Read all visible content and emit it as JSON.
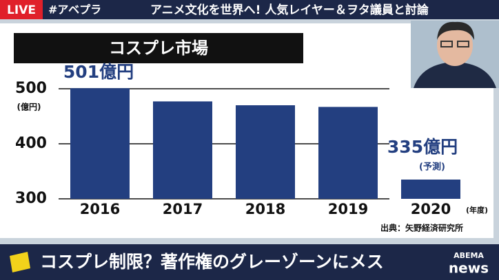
{
  "header": {
    "live": "LIVE",
    "hashtag": "#アベプラ",
    "topic": "アニメ文化を世界へ! 人気レイヤー＆ヲタ議員と討論"
  },
  "caption": {
    "text": "コスプレ制限？著作権のグレーゾーンにメス",
    "logo_top": "ABEMA",
    "logo_bottom": "news"
  },
  "chart_data": {
    "type": "bar",
    "title": "コスプレ市場",
    "categories": [
      "2016",
      "2017",
      "2018",
      "2019",
      "2020"
    ],
    "values": [
      501,
      477,
      470,
      467,
      335
    ],
    "value_labels": [
      "501億円",
      null,
      null,
      null,
      "335億円"
    ],
    "forecast_note": "(予測)",
    "y_unit": "(億円)",
    "x_unit": "(年度)",
    "source": "出典：矢野経済研究所",
    "color": "#233f80",
    "ylim": [
      300,
      510
    ],
    "yticks": [
      300,
      400,
      500
    ]
  }
}
